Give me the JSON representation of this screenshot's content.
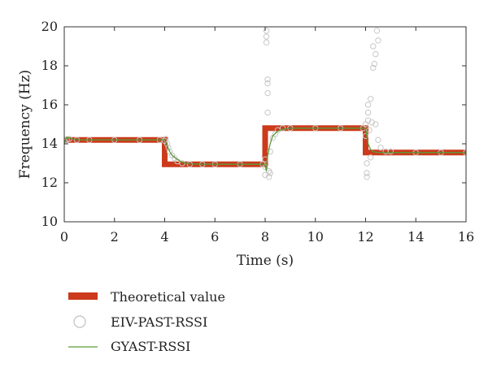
{
  "chart_data": {
    "type": "line",
    "xlabel": "Time (s)",
    "ylabel": "Frequency (Hz)",
    "xlim": [
      0,
      16
    ],
    "ylim": [
      10,
      20
    ],
    "xticks": [
      0,
      2,
      4,
      6,
      8,
      10,
      12,
      14,
      16
    ],
    "yticks": [
      10,
      12,
      14,
      16,
      18,
      20
    ],
    "grid": false,
    "legend_position": "bottom-left, below plot",
    "series": [
      {
        "name": "Theoretical value",
        "style": "thick-step-line",
        "color": "#cc3a1b",
        "x": [
          0,
          4,
          4,
          8,
          8,
          12,
          12,
          16
        ],
        "y": [
          14.2,
          14.2,
          12.95,
          12.95,
          14.8,
          14.8,
          13.55,
          13.55
        ]
      },
      {
        "name": "EIV-PAST-RSSI",
        "style": "hollow-circle-markers",
        "color": "#c8c8c8",
        "x": [
          0.0,
          0.1,
          0.2,
          0.5,
          1.0,
          2.0,
          3.0,
          3.8,
          4.0,
          4.05,
          4.1,
          4.15,
          4.2,
          4.3,
          4.4,
          4.5,
          4.7,
          5.0,
          5.5,
          6.0,
          7.0,
          7.9,
          8.0,
          8.0,
          8.0,
          8.05,
          8.05,
          8.05,
          8.1,
          8.1,
          8.1,
          8.1,
          8.15,
          8.15,
          8.2,
          8.2,
          8.3,
          8.4,
          8.5,
          8.7,
          9.0,
          10.0,
          11.0,
          11.9,
          12.0,
          12.0,
          12.05,
          12.05,
          12.05,
          12.1,
          12.1,
          12.1,
          12.15,
          12.2,
          12.2,
          12.25,
          12.3,
          12.3,
          12.35,
          12.4,
          12.4,
          12.45,
          12.5,
          12.5,
          12.6,
          12.8,
          13.0,
          14.0,
          15.0,
          16.0
        ],
        "y": [
          14.1,
          14.2,
          14.25,
          14.2,
          14.2,
          14.2,
          14.2,
          14.2,
          14.15,
          14.25,
          14.0,
          13.8,
          13.6,
          13.4,
          13.25,
          13.1,
          13.0,
          12.95,
          12.95,
          12.95,
          12.95,
          12.95,
          12.4,
          12.8,
          13.2,
          19.8,
          19.5,
          19.2,
          17.3,
          17.1,
          16.6,
          15.6,
          12.3,
          12.6,
          12.5,
          13.6,
          14.3,
          14.5,
          14.7,
          14.8,
          14.8,
          14.8,
          14.8,
          14.8,
          14.4,
          15.0,
          13.0,
          12.5,
          12.3,
          15.2,
          15.6,
          16.0,
          14.7,
          13.3,
          16.3,
          15.1,
          19.0,
          17.9,
          18.1,
          18.6,
          15.0,
          19.8,
          14.2,
          19.3,
          13.8,
          13.6,
          13.6,
          13.55,
          13.55,
          13.55
        ]
      },
      {
        "name": "GYAST-RSSI",
        "style": "thin-line",
        "color": "#5a9a3a",
        "x": [
          0,
          0.1,
          0.3,
          0.6,
          1.0,
          2.0,
          3.0,
          3.9,
          4.0,
          4.1,
          4.2,
          4.3,
          4.5,
          4.7,
          5.0,
          5.5,
          6.0,
          7.0,
          7.9,
          8.0,
          8.05,
          8.1,
          8.2,
          8.3,
          8.5,
          8.7,
          9.0,
          10.0,
          11.0,
          11.9,
          12.0,
          12.1,
          12.2,
          12.3,
          12.5,
          12.8,
          13.0,
          14.0,
          15.0,
          16.0
        ],
        "y": [
          14.0,
          14.35,
          14.25,
          14.2,
          14.2,
          14.2,
          14.2,
          14.2,
          14.2,
          13.9,
          13.6,
          13.4,
          13.2,
          13.05,
          12.97,
          12.95,
          12.95,
          12.95,
          12.95,
          12.9,
          12.6,
          13.4,
          14.0,
          14.4,
          14.65,
          14.75,
          14.8,
          14.8,
          14.8,
          14.8,
          14.8,
          14.0,
          13.7,
          13.6,
          13.55,
          13.55,
          13.55,
          13.55,
          13.55,
          13.55
        ]
      }
    ]
  }
}
